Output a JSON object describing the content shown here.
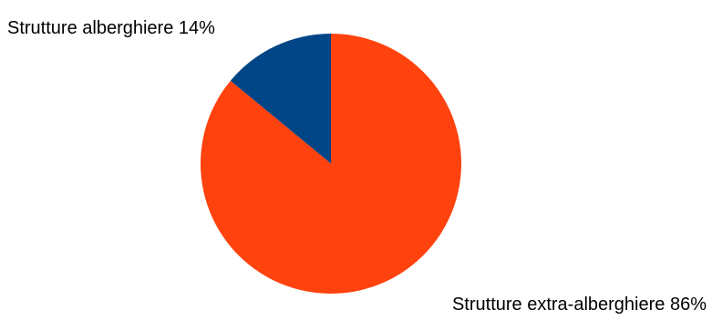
{
  "chart_data": {
    "type": "pie",
    "slices": [
      {
        "label": "Strutture alberghiere 14%",
        "value": 14,
        "color": "#004586"
      },
      {
        "label": "Strutture extra-alberghiere 86%",
        "value": 86,
        "color": "#ff420e"
      }
    ],
    "start_angle_deg": 0,
    "direction": "counterclockwise"
  }
}
